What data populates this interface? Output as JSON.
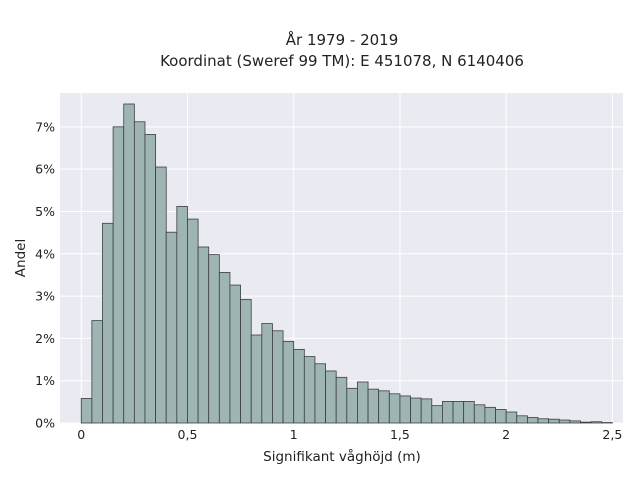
{
  "chart_data": {
    "type": "bar",
    "title": "År 1979 - 2019",
    "subtitle": "Koordinat (Sweref 99 TM): E 451078, N 6140406",
    "xlabel": "Signifikant våghöjd (m)",
    "ylabel": "Andel",
    "xlim": [
      -0.1,
      2.55
    ],
    "ylim": [
      0,
      0.078
    ],
    "x_ticks": [
      {
        "value": 0,
        "label": "0"
      },
      {
        "value": 0.5,
        "label": "0,5"
      },
      {
        "value": 1,
        "label": "1"
      },
      {
        "value": 1.5,
        "label": "1,5"
      },
      {
        "value": 2,
        "label": "2"
      },
      {
        "value": 2.5,
        "label": "2,5"
      }
    ],
    "y_ticks": [
      {
        "value": 0,
        "label": "0%"
      },
      {
        "value": 0.01,
        "label": "1%"
      },
      {
        "value": 0.02,
        "label": "2%"
      },
      {
        "value": 0.03,
        "label": "3%"
      },
      {
        "value": 0.04,
        "label": "4%"
      },
      {
        "value": 0.05,
        "label": "5%"
      },
      {
        "value": 0.06,
        "label": "6%"
      },
      {
        "value": 0.07,
        "label": "7%"
      }
    ],
    "grid": true,
    "bin_width": 0.05,
    "bin_starts": [
      0.0,
      0.05,
      0.1,
      0.15,
      0.2,
      0.25,
      0.3,
      0.35,
      0.4,
      0.45,
      0.5,
      0.55,
      0.6,
      0.65,
      0.7,
      0.75,
      0.8,
      0.85,
      0.9,
      0.95,
      1.0,
      1.05,
      1.1,
      1.15,
      1.2,
      1.25,
      1.3,
      1.35,
      1.4,
      1.45,
      1.5,
      1.55,
      1.6,
      1.65,
      1.7,
      1.75,
      1.8,
      1.85,
      1.9,
      1.95,
      2.0,
      2.05,
      2.1,
      2.15,
      2.2,
      2.25,
      2.3,
      2.35,
      2.4,
      2.45
    ],
    "values": [
      0.0058,
      0.0242,
      0.0472,
      0.07,
      0.0754,
      0.0712,
      0.0682,
      0.0605,
      0.0451,
      0.0512,
      0.0482,
      0.0416,
      0.0398,
      0.0356,
      0.0326,
      0.0292,
      0.0208,
      0.0235,
      0.0218,
      0.0193,
      0.0174,
      0.0157,
      0.014,
      0.0123,
      0.0108,
      0.0082,
      0.0097,
      0.008,
      0.0076,
      0.0069,
      0.0064,
      0.0059,
      0.0057,
      0.0041,
      0.0051,
      0.0051,
      0.0051,
      0.0043,
      0.0037,
      0.0032,
      0.0026,
      0.0017,
      0.0013,
      0.001,
      0.0009,
      0.0007,
      0.0005,
      0.0002,
      0.0003,
      0.0001
    ],
    "colors": {
      "background": "#eaeaf2",
      "grid": "#ffffff",
      "bar_fill": "#9fb5b4",
      "bar_stroke": "#3a3f3e"
    }
  }
}
